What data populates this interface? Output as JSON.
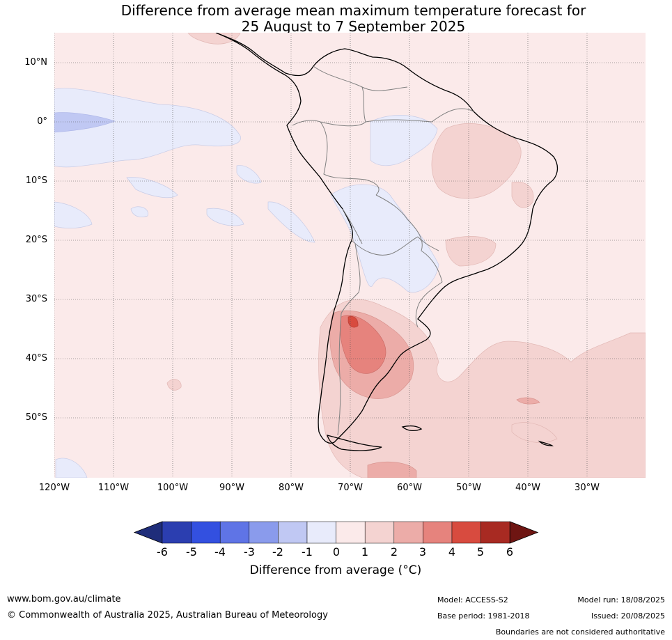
{
  "title": {
    "line1": "Difference from average mean maximum temperature forecast for",
    "line2": "25 August to 7 September 2025"
  },
  "map": {
    "lat_labels": [
      "10°N",
      "0°",
      "10°S",
      "20°S",
      "30°S",
      "40°S",
      "50°S"
    ],
    "lon_labels": [
      "120°W",
      "110°W",
      "100°W",
      "90°W",
      "80°W",
      "70°W",
      "60°W",
      "50°W",
      "40°W",
      "30°W"
    ],
    "background_color": "#fbeaea",
    "gridlines": true
  },
  "legend": {
    "ticks": [
      "-6",
      "-5",
      "-4",
      "-3",
      "-2",
      "-1",
      "0",
      "1",
      "2",
      "3",
      "4",
      "5",
      "6"
    ],
    "colors": [
      "#1f2d7a",
      "#2b3eb0",
      "#3350e0",
      "#5f74e6",
      "#8a9bec",
      "#c0c8f3",
      "#e8ebfb",
      "#fbeaea",
      "#f4d3d1",
      "#ecaca8",
      "#e6837d",
      "#d84b3f",
      "#a82a22",
      "#6e1512"
    ],
    "label": "Difference from average (°C)"
  },
  "footer": {
    "website": "www.bom.gov.au/climate",
    "copyright": "© Commonwealth of Australia 2025, Australian Bureau of Meteorology",
    "model": "Model: ACCESS-S2",
    "base_period": "Base period: 1981-2018",
    "model_run": "Model run: 18/08/2025",
    "issued": "Issued: 20/08/2025",
    "disclaimer": "Boundaries are not considered authoritative"
  }
}
